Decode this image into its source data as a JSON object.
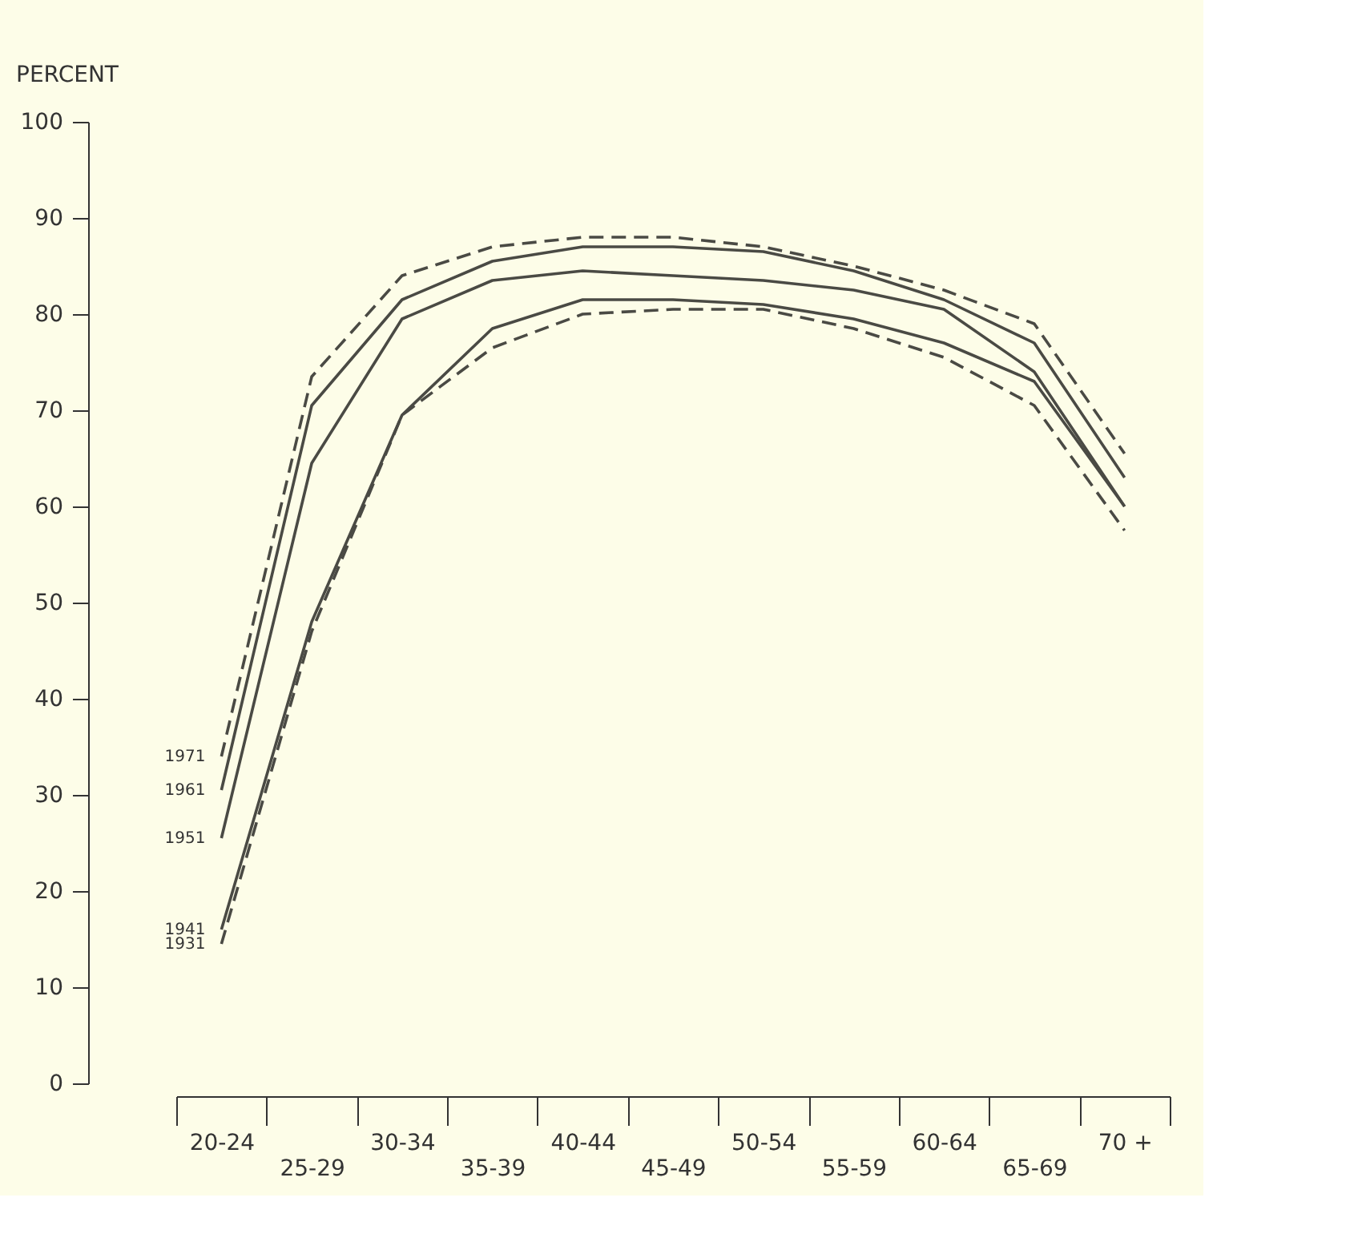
{
  "chart_data": {
    "type": "line",
    "ylabel": "PERCENT",
    "categories": [
      "20-24",
      "25-29",
      "30-34",
      "35-39",
      "40-44",
      "45-49",
      "50-54",
      "55-59",
      "60-64",
      "65-69",
      "70 +"
    ],
    "series": [
      {
        "name": "1971",
        "color": "#4a4a44",
        "line_style": "dashed",
        "values": [
          34,
          73.5,
          84,
          87,
          88,
          88,
          87,
          85,
          82.5,
          79,
          65.5
        ]
      },
      {
        "name": "1961",
        "color": "#4a4a44",
        "line_style": "solid",
        "values": [
          30.5,
          70.5,
          81.5,
          85.5,
          87,
          87,
          86.5,
          84.5,
          81.5,
          77,
          63
        ]
      },
      {
        "name": "1951",
        "color": "#4a4a44",
        "line_style": "solid",
        "values": [
          25.5,
          64.5,
          79.5,
          83.5,
          84.5,
          84,
          83.5,
          82.5,
          80.5,
          74,
          60
        ]
      },
      {
        "name": "1941",
        "color": "#4a4a44",
        "line_style": "solid",
        "values": [
          16,
          48,
          69.5,
          78.5,
          81.5,
          81.5,
          81,
          79.5,
          77,
          73,
          60
        ]
      },
      {
        "name": "1931",
        "color": "#4a4a44",
        "line_style": "dashed",
        "values": [
          14.5,
          47,
          69.5,
          76.5,
          80,
          80.5,
          80.5,
          78.5,
          75.5,
          70.5,
          57.5
        ]
      }
    ],
    "ylim": [
      0,
      100
    ],
    "yticks": [
      0,
      10,
      20,
      30,
      40,
      50,
      60,
      70,
      80,
      90,
      100
    ],
    "marker": "none"
  }
}
